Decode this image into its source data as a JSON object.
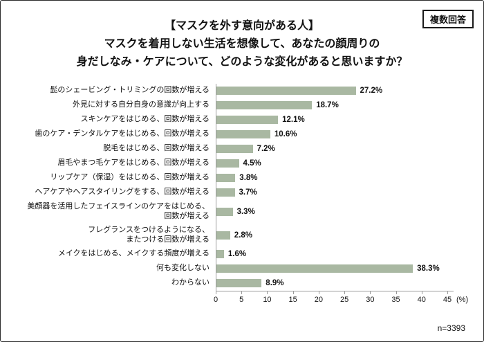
{
  "header": {
    "badge": "複数回答",
    "title_line1": "【マスクを外す意向がある人】",
    "title_line2": "マスクを着用しない生活を想像して、あなたの顔周りの",
    "title_line3": "身だしなみ・ケアについて、どのような変化があると思いますか？"
  },
  "chart_data": {
    "type": "bar",
    "orientation": "horizontal",
    "title": "マスクを着用しない生活を想像して、あなたの顔周りの身だしなみ・ケアについて、どのような変化があると思いますか？",
    "categories": [
      "髭のシェービング・トリミングの回数が増える",
      "外見に対する自分自身の意識が向上する",
      "スキンケアをはじめる、回数が増える",
      "歯のケア・デンタルケアをはじめる、回数が増える",
      "脱毛をはじめる、回数が増える",
      "眉毛やまつ毛ケアをはじめる、回数が増える",
      "リップケア（保湿）をはじめる、回数が増える",
      "ヘアケアやヘアスタイリングをする、回数が増える",
      "美顔器を活用したフェイスラインのケアをはじめる、\n回数が増える",
      "フレグランスをつけるようになる、\nまたつける回数が増える",
      "メイクをはじめる、メイクする頻度が増える",
      "何も変化しない",
      "わからない"
    ],
    "values": [
      27.2,
      18.7,
      12.1,
      10.6,
      7.2,
      4.5,
      3.8,
      3.7,
      3.3,
      2.8,
      1.6,
      38.3,
      8.9
    ],
    "value_labels": [
      "27.2%",
      "18.7%",
      "12.1%",
      "10.6%",
      "7.2%",
      "4.5%",
      "3.8%",
      "3.7%",
      "3.3%",
      "2.8%",
      "1.6%",
      "38.3%",
      "8.9%"
    ],
    "xlim": [
      0,
      45
    ],
    "x_ticks": [
      0,
      5,
      10,
      15,
      20,
      25,
      30,
      35,
      40,
      45
    ],
    "x_unit": "(%)",
    "bar_color": "#a9b8a2",
    "grid": false,
    "legend": false
  },
  "footer": {
    "n_label": "n=3393"
  }
}
